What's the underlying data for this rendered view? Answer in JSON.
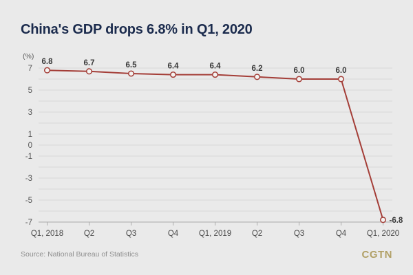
{
  "header": {
    "title": "China's GDP drops 6.8% in Q1, 2020"
  },
  "chart_data": {
    "type": "line",
    "title": "China's GDP drops 6.8% in Q1, 2020",
    "unit_label": "(%)",
    "categories": [
      "Q1, 2018",
      "Q2",
      "Q3",
      "Q4",
      "Q1, 2019",
      "Q2",
      "Q3",
      "Q4",
      "Q1, 2020"
    ],
    "values": [
      6.8,
      6.7,
      6.5,
      6.4,
      6.4,
      6.2,
      6.0,
      6.0,
      -6.8
    ],
    "value_labels": [
      "6.8",
      "6.7",
      "6.5",
      "6.4",
      "6.4",
      "6.2",
      "6.0",
      "6.0",
      "-6.8"
    ],
    "xlabel": "",
    "ylabel": "(%)",
    "ylim": [
      -7,
      7
    ],
    "ytick_step": 1,
    "ytick_labeled": [
      7,
      5,
      3,
      1,
      0,
      -1,
      -3,
      -5,
      -7
    ],
    "grid": true,
    "legend": "none",
    "line_color": "#a43e38",
    "marker": "open-circle",
    "marker_fill": "#f4f3f1",
    "grid_color": "#d8d8d8",
    "axis_color": "#ababab",
    "tick_label_color": "#555555",
    "data_label_color": "#3a3a3a"
  },
  "footer": {
    "source": "Source: National Bureau of Statistics",
    "brand": "CGTN",
    "brand_color": "#b1a066"
  }
}
